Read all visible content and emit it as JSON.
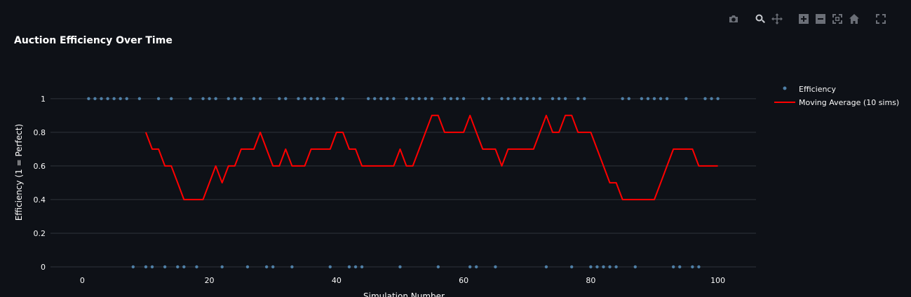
{
  "chart_data": {
    "type": "line",
    "title": "Auction Efficiency Over Time",
    "xlabel": "Simulation Number",
    "ylabel": "Efficiency (1 = Perfect)",
    "xlim": [
      -5,
      106
    ],
    "ylim": [
      -0.05,
      1.12
    ],
    "x_ticks": [
      0,
      20,
      40,
      60,
      80,
      100
    ],
    "y_ticks": [
      0,
      0.2,
      0.4,
      0.6,
      0.8,
      1
    ],
    "grid": true,
    "legend_position": "top-right",
    "series": [
      {
        "name": "Efficiency",
        "kind": "scatter",
        "color": "#4f7fa6",
        "x": [
          1,
          2,
          3,
          4,
          5,
          6,
          7,
          8,
          9,
          10,
          11,
          12,
          13,
          14,
          15,
          16,
          17,
          18,
          19,
          20,
          21,
          22,
          23,
          24,
          25,
          26,
          27,
          28,
          29,
          30,
          31,
          32,
          33,
          34,
          35,
          36,
          37,
          38,
          39,
          40,
          41,
          42,
          43,
          44,
          45,
          46,
          47,
          48,
          49,
          50,
          51,
          52,
          53,
          54,
          55,
          56,
          57,
          58,
          59,
          60,
          61,
          62,
          63,
          64,
          65,
          66,
          67,
          68,
          69,
          70,
          71,
          72,
          73,
          74,
          75,
          76,
          77,
          78,
          79,
          80,
          81,
          82,
          83,
          84,
          85,
          86,
          87,
          88,
          89,
          90,
          91,
          92,
          93,
          94,
          95,
          96,
          97,
          98,
          99,
          100
        ],
        "y": [
          1,
          1,
          1,
          1,
          1,
          1,
          1,
          0,
          1,
          0,
          0,
          1,
          0,
          1,
          0,
          0,
          1,
          0,
          1,
          1,
          1,
          0,
          1,
          1,
          1,
          0,
          1,
          1,
          0,
          0,
          1,
          1,
          0,
          1,
          1,
          1,
          1,
          1,
          0,
          1,
          1,
          0,
          0,
          0,
          1,
          1,
          1,
          1,
          1,
          0,
          1,
          1,
          1,
          1,
          1,
          0,
          1,
          1,
          1,
          1,
          0,
          0,
          1,
          1,
          0,
          1,
          1,
          1,
          1,
          1,
          1,
          1,
          0,
          1,
          1,
          1,
          0,
          1,
          1,
          0,
          0,
          0,
          0,
          0,
          1,
          1,
          0,
          1,
          1,
          1,
          1,
          1,
          0,
          0,
          1,
          0,
          0,
          1,
          1,
          1
        ]
      },
      {
        "name": "Moving Average (10 sims)",
        "kind": "line",
        "color": "#ff0000",
        "x": [
          10,
          11,
          12,
          13,
          14,
          15,
          16,
          17,
          18,
          19,
          20,
          21,
          22,
          23,
          24,
          25,
          26,
          27,
          28,
          29,
          30,
          31,
          32,
          33,
          34,
          35,
          36,
          37,
          38,
          39,
          40,
          41,
          42,
          43,
          44,
          45,
          46,
          47,
          48,
          49,
          50,
          51,
          52,
          53,
          54,
          55,
          56,
          57,
          58,
          59,
          60,
          61,
          62,
          63,
          64,
          65,
          66,
          67,
          68,
          69,
          70,
          71,
          72,
          73,
          74,
          75,
          76,
          77,
          78,
          79,
          80,
          81,
          82,
          83,
          84,
          85,
          86,
          87,
          88,
          89,
          90,
          91,
          92,
          93,
          94,
          95,
          96,
          97,
          98,
          99,
          100
        ],
        "y": [
          0.8,
          0.7,
          0.7,
          0.6,
          0.6,
          0.5,
          0.4,
          0.4,
          0.4,
          0.4,
          0.5,
          0.6,
          0.5,
          0.6,
          0.6,
          0.7,
          0.7,
          0.7,
          0.8,
          0.7,
          0.6,
          0.6,
          0.7,
          0.6,
          0.6,
          0.6,
          0.7,
          0.7,
          0.7,
          0.7,
          0.8,
          0.8,
          0.7,
          0.7,
          0.6,
          0.6,
          0.6,
          0.6,
          0.6,
          0.6,
          0.7,
          0.6,
          0.6,
          0.7,
          0.8,
          0.9,
          0.9,
          0.8,
          0.8,
          0.8,
          0.8,
          0.9,
          0.8,
          0.7,
          0.7,
          0.7,
          0.6,
          0.7,
          0.7,
          0.7,
          0.7,
          0.7,
          0.8,
          0.9,
          0.8,
          0.8,
          0.9,
          0.9,
          0.8,
          0.8,
          0.8,
          0.7,
          0.6,
          0.5,
          0.5,
          0.4,
          0.4,
          0.4,
          0.4,
          0.4,
          0.4,
          0.5,
          0.6,
          0.7,
          0.7,
          0.7,
          0.7,
          0.6,
          0.6,
          0.6,
          0.6
        ]
      }
    ]
  },
  "modebar": {
    "buttons": [
      "camera-icon",
      "zoom-icon",
      "pan-icon",
      "zoom-in-icon",
      "zoom-out-icon",
      "autoscale-icon",
      "reset-axes-icon",
      "fullscreen-icon"
    ],
    "icon_color": "#6b6f77",
    "active_color": "#c9ccd1"
  },
  "colors": {
    "background": "#0e1117",
    "grid": "#2f333b",
    "text": "#fafafa"
  }
}
